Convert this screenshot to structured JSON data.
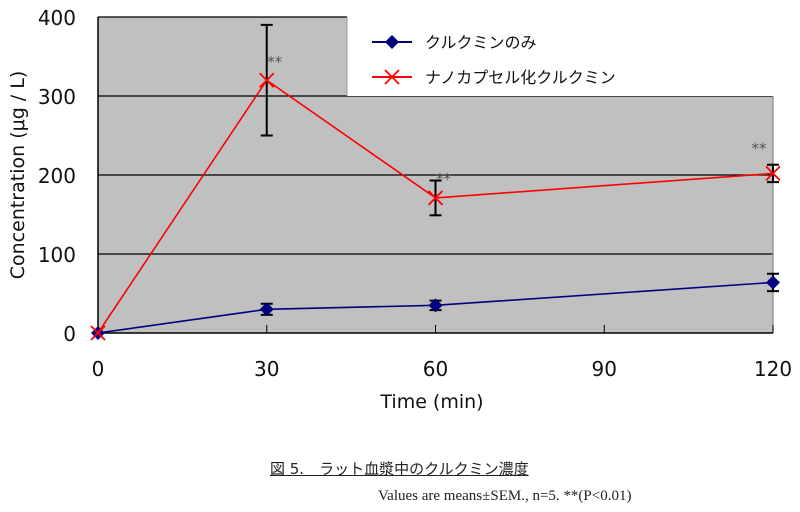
{
  "chart_data": {
    "type": "line",
    "title": "",
    "xlabel": "Time (min)",
    "ylabel": "Concentration (μg / L)",
    "xlim": [
      0,
      120
    ],
    "ylim": [
      0,
      400
    ],
    "x_ticks": [
      0,
      30,
      60,
      90,
      120
    ],
    "y_ticks": [
      0,
      100,
      200,
      300,
      400
    ],
    "grid": {
      "horizontal": true,
      "vertical": false
    },
    "legend_position": "top-right (inside plot)",
    "x": [
      0,
      30,
      60,
      120
    ],
    "series": [
      {
        "name": "クルクミンのみ",
        "color": "#000080",
        "marker": "diamond",
        "values": [
          0,
          30,
          35,
          64
        ],
        "error": [
          0,
          7,
          6,
          11
        ]
      },
      {
        "name": "ナノカプセル化クルクミン",
        "color": "#ff0000",
        "marker": "x",
        "values": [
          0,
          320,
          171,
          202
        ],
        "error": [
          0,
          70,
          22,
          11
        ],
        "significance": [
          "",
          "**",
          "**",
          "**"
        ]
      }
    ],
    "annotations": [
      "**",
      "**",
      "**"
    ]
  },
  "figure": {
    "caption": "図 5.　ラット血漿中のクルクミン濃度",
    "note": "Values are means±SEM., n=5. **(P<0.01)"
  },
  "colors": {
    "plot_bg": "#c0c0c0",
    "gridline": "#000000"
  }
}
